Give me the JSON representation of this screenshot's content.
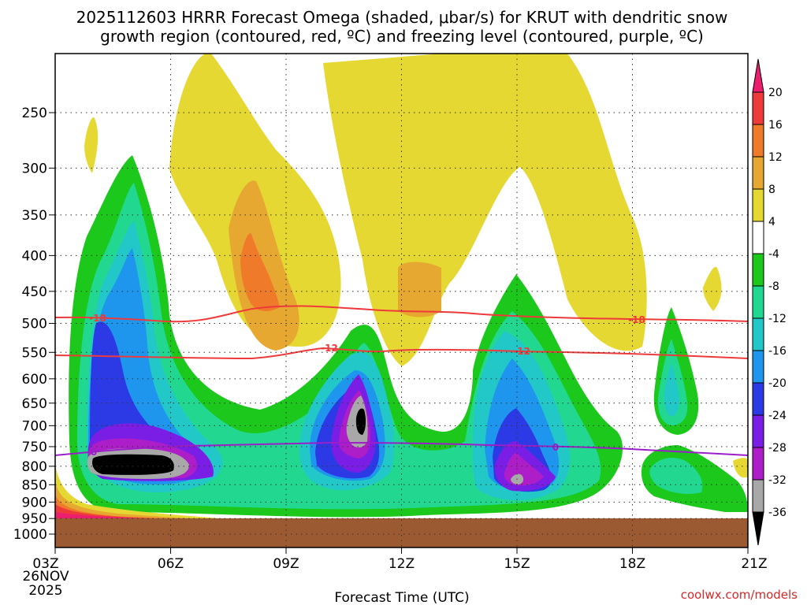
{
  "chart_data": {
    "type": "time-height contour",
    "title_line1": "2025112603 HRRR Forecast Omega (shaded, μbar/s) for KRUT with dendritic snow",
    "title_line2": "growth region (contoured, red, ºC) and freezing level (contoured, purple, ºC)",
    "xlabel": "Forecast Time (UTC)",
    "x_ticks": [
      "03Z",
      "06Z",
      "09Z",
      "12Z",
      "15Z",
      "18Z",
      "21Z"
    ],
    "x_date_label": [
      "26NOV",
      "2025"
    ],
    "y_ticks": [
      250,
      300,
      350,
      400,
      450,
      500,
      550,
      600,
      650,
      700,
      750,
      800,
      850,
      900,
      950,
      1000
    ],
    "ylabel": "",
    "colorbar_labels": [
      20,
      16,
      12,
      8,
      4,
      -4,
      -8,
      -12,
      -16,
      -20,
      -24,
      -28,
      -32,
      -36
    ],
    "colorbar_colors": [
      "#ee1e6e",
      "#ee3a3a",
      "#ee7a2a",
      "#e6a830",
      "#e6d832",
      "#ffffff",
      "#1bc81b",
      "#22d890",
      "#22c8c8",
      "#1e96ee",
      "#2c3ae6",
      "#7a1ee6",
      "#ae1ec8",
      "#a8a8a8",
      "#000000"
    ],
    "contours": [
      {
        "name": "dendritic snow growth region",
        "color": "#ee3a3a",
        "levels": [
          "-18",
          "-12"
        ]
      },
      {
        "name": "freezing level",
        "color": "#9b1ec8",
        "levels": [
          "0"
        ]
      }
    ],
    "credit": "coolwx.com/models"
  }
}
